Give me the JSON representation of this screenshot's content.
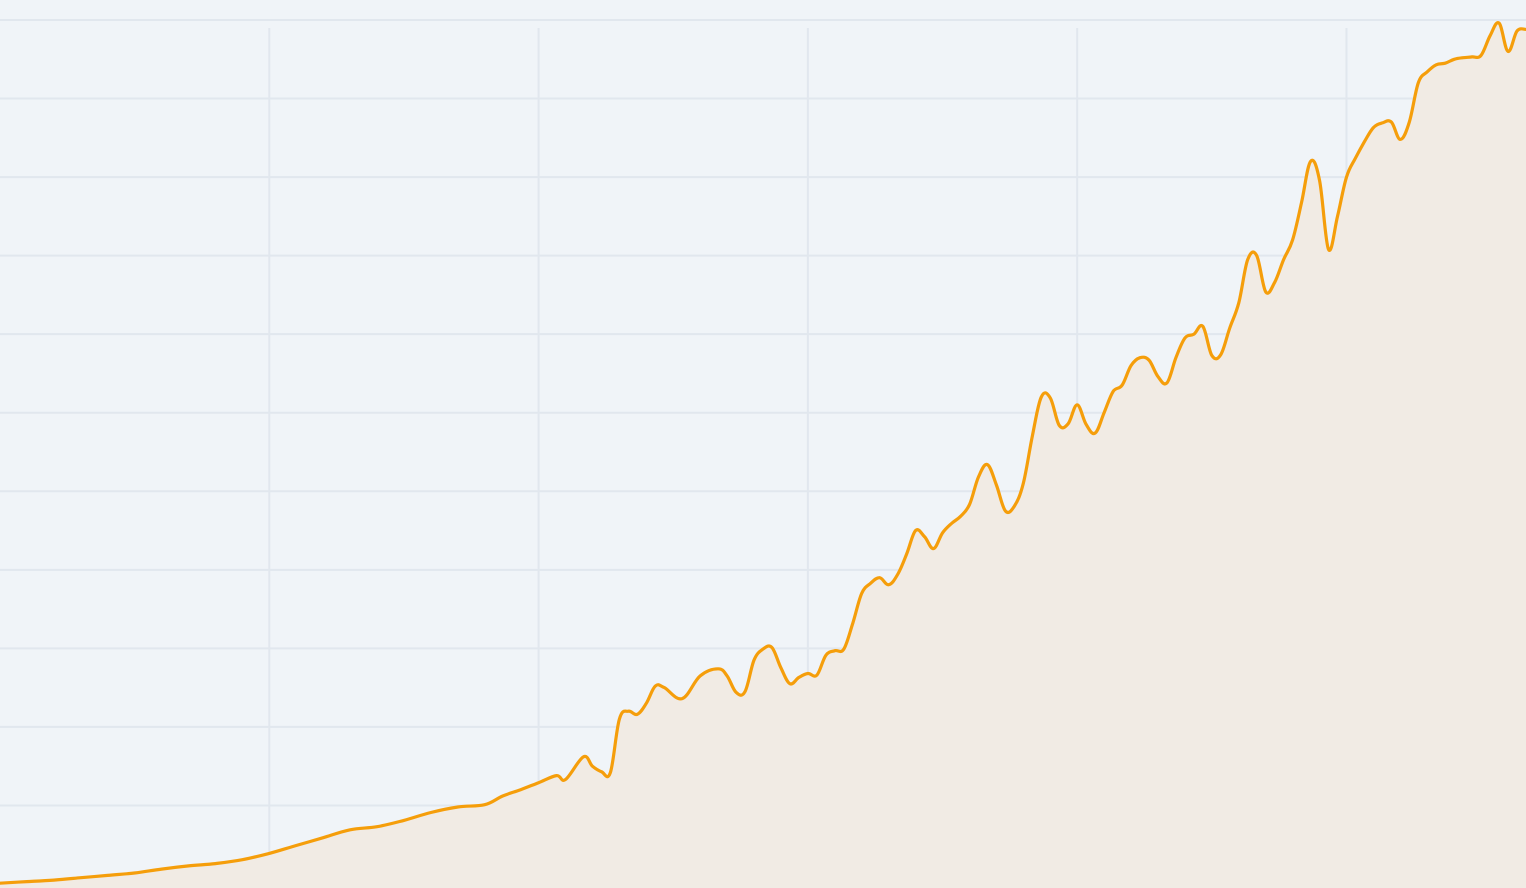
{
  "chart_data": {
    "type": "area",
    "title": "",
    "xlabel": "",
    "ylabel": "",
    "xlim": [
      0,
      170
    ],
    "ylim": [
      0,
      110
    ],
    "x_grid_step": 30,
    "y_grid_step": 10,
    "grid": true,
    "legend": "none",
    "series": [
      {
        "name": "",
        "x": [
          0,
          3,
          6,
          9,
          12,
          15,
          18,
          21,
          24,
          27,
          30,
          33,
          36,
          39,
          42,
          45,
          48,
          51,
          54,
          56,
          58,
          60,
          62,
          63,
          65,
          66,
          67,
          68,
          69,
          70,
          71,
          72,
          73,
          74,
          76,
          78,
          80,
          81,
          82,
          83,
          84,
          85,
          86,
          87,
          88,
          89,
          90,
          91,
          92,
          93,
          94,
          95,
          96,
          97,
          98,
          99,
          100,
          101,
          102,
          103,
          104,
          105,
          106,
          107,
          108,
          109,
          110,
          111,
          112,
          113,
          114,
          115,
          116,
          117,
          118,
          119,
          120,
          121,
          122,
          123,
          124,
          125,
          126,
          127,
          128,
          129,
          130,
          131,
          132,
          133,
          134,
          135,
          136,
          137,
          138,
          139,
          140,
          141,
          142,
          143,
          144,
          145,
          146,
          147,
          148,
          149,
          150,
          151,
          152,
          153,
          154,
          155,
          156,
          157,
          158,
          159,
          160,
          161,
          162,
          163,
          164,
          165,
          166,
          167,
          168,
          169,
          170
        ],
        "values": [
          0.1,
          0.3,
          0.5,
          0.8,
          1.1,
          1.4,
          1.9,
          2.3,
          2.6,
          3.1,
          3.9,
          4.9,
          5.9,
          6.9,
          7.3,
          8.1,
          9.1,
          9.8,
          10.1,
          11.2,
          12.0,
          12.9,
          13.8,
          13.3,
          16.2,
          15.0,
          14.3,
          14.2,
          21.0,
          22.0,
          21.6,
          23.0,
          25.2,
          25.0,
          23.6,
          26.5,
          27.4,
          26.5,
          24.4,
          24.5,
          28.5,
          29.9,
          30.1,
          27.5,
          25.5,
          26.3,
          26.8,
          26.6,
          29.1,
          29.7,
          29.9,
          33.2,
          37.0,
          38.3,
          39.0,
          38.1,
          39.4,
          42.0,
          45.0,
          44.2,
          42.7,
          44.7,
          45.9,
          46.8,
          48.3,
          51.8,
          53.4,
          50.8,
          47.5,
          48.1,
          51.0,
          57.0,
          62.0,
          61.9,
          58.4,
          58.6,
          61.0,
          58.5,
          57.4,
          60.0,
          62.7,
          63.5,
          66.0,
          67.0,
          66.7,
          64.6,
          63.8,
          67.0,
          69.5,
          70.0,
          71.0,
          67.3,
          67.4,
          70.8,
          74.0,
          79.5,
          80.0,
          75.4,
          76.6,
          79.5,
          82.0,
          86.8,
          92.0,
          89.6,
          80.8,
          85.0,
          90.0,
          92.4,
          94.5,
          96.3,
          96.9,
          97.0,
          94.8,
          97.0,
          102.0,
          103.4,
          104.3,
          104.5,
          105.0,
          105.2,
          105.3,
          105.5,
          108.0,
          109.6,
          106.0,
          108.6,
          108.8
        ]
      }
    ],
    "colors": {
      "line": "#f59e0b",
      "fill": "#f1ebe4",
      "grid": "#e1e7ee",
      "background": "#f0f4f8"
    }
  }
}
